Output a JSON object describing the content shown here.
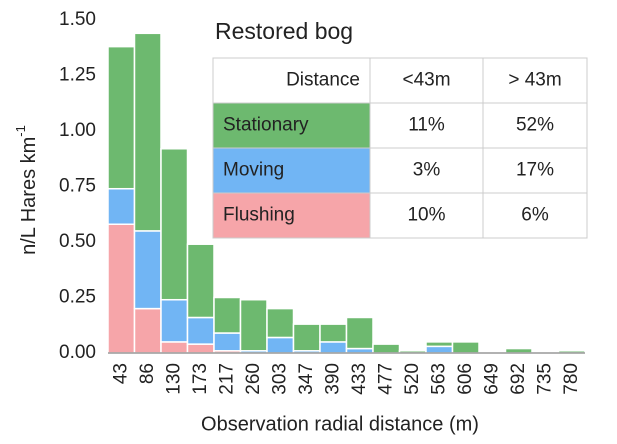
{
  "chart_data": {
    "type": "stacked_bar",
    "title": "Restored bog",
    "xlabel": "Observation radial distance (m)",
    "ylabel": "n/L Hares km",
    "ylabel_superscript": "-1",
    "categories": [
      "43",
      "86",
      "130",
      "173",
      "217",
      "260",
      "303",
      "347",
      "390",
      "433",
      "477",
      "520",
      "563",
      "606",
      "649",
      "692",
      "735",
      "780"
    ],
    "series": [
      {
        "name": "Flushing",
        "color": "#f6a5a9",
        "values": [
          0.58,
          0.2,
          0.05,
          0.04,
          0.01,
          0,
          0,
          0,
          0,
          0,
          0,
          0,
          0,
          0,
          0,
          0,
          0,
          0
        ]
      },
      {
        "name": "Moving",
        "color": "#71b5f4",
        "values": [
          0.16,
          0.35,
          0.19,
          0.12,
          0.08,
          0.01,
          0.07,
          0.01,
          0.05,
          0.02,
          0,
          0,
          0.03,
          0,
          0,
          0,
          0,
          0
        ]
      },
      {
        "name": "Stationary",
        "color": "#6db96f",
        "values": [
          0.64,
          0.89,
          0.68,
          0.33,
          0.16,
          0.23,
          0.13,
          0.12,
          0.08,
          0.14,
          0.04,
          0.01,
          0.02,
          0.05,
          0,
          0.02,
          0,
          0.01
        ]
      }
    ],
    "ylim": [
      0,
      1.5
    ],
    "yticks": [
      {
        "value": 0,
        "label": "0.00"
      },
      {
        "value": 0.25,
        "label": "0.25"
      },
      {
        "value": 0.5,
        "label": "0.50"
      },
      {
        "value": 0.75,
        "label": "0.75"
      },
      {
        "value": 1,
        "label": "1.00"
      },
      {
        "value": 1.25,
        "label": "1.25"
      },
      {
        "value": 1.5,
        "label": "1.50"
      }
    ],
    "table": {
      "header": [
        "Distance",
        "<43m",
        "> 43m"
      ],
      "rows": [
        [
          "Stationary",
          "11%",
          "52%"
        ],
        [
          "Moving",
          "3%",
          "17%"
        ],
        [
          "Flushing",
          "10%",
          "6%"
        ]
      ]
    }
  }
}
